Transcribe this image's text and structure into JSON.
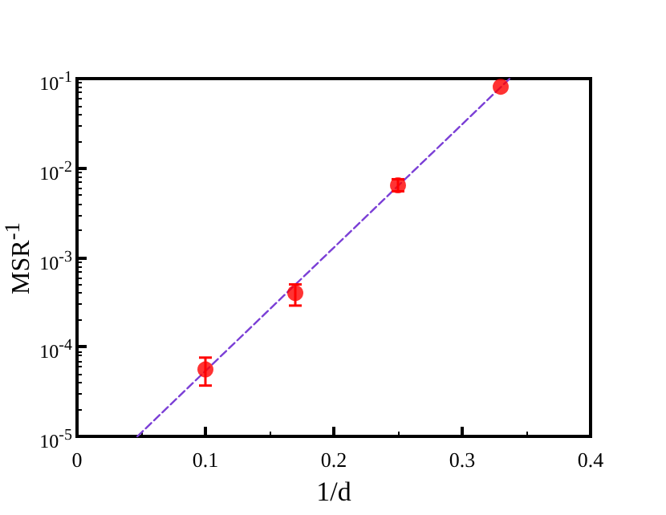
{
  "chart_data": {
    "type": "scatter",
    "xlabel": "1/d",
    "ylabel": "MSR$^{-1}$",
    "log": "y",
    "xlim": [
      0,
      0.4
    ],
    "xticks": [
      0,
      0.1,
      0.2,
      0.3,
      0.4
    ],
    "ylim": [
      1e-05,
      0.1
    ],
    "yticks": [
      {
        "value": 1e-05,
        "label": "10$^{-5}$"
      },
      {
        "value": 0.0001,
        "label": "10$^{-4}$"
      },
      {
        "value": 0.001,
        "label": "10$^{-3}$"
      },
      {
        "value": 0.01,
        "label": "10$^{-2}$"
      },
      {
        "value": 0.1,
        "label": "10$^{-1}$"
      }
    ],
    "series": [
      {
        "color": "#ff0000",
        "marker": "circle",
        "x": [
          0.1,
          0.17,
          0.25,
          0.33
        ],
        "values": [
          5.6e-05,
          0.0004,
          0.0064,
          0.081
        ],
        "errors": [
          [
            3.7e-05,
            7.6e-05
          ],
          [
            0.00029,
            0.0005
          ],
          [
            0.0055,
            0.0075
          ],
          null
        ]
      },
      {
        "type": "line",
        "color": "#7b3fd6",
        "marker": "none",
        "line_style": "dashed",
        "x": [
          0.047,
          0.337
        ],
        "values": [
          1e-05,
          0.1
        ]
      }
    ]
  }
}
